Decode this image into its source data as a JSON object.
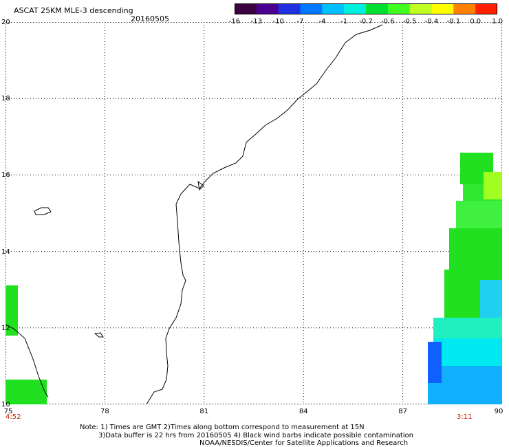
{
  "header": {
    "title": "ASCAT 25KM MLE-3 descending",
    "date": "20160505"
  },
  "colorbar": {
    "colors": [
      "#3a0040",
      "#4a0090",
      "#2030e0",
      "#0078ff",
      "#00c0ff",
      "#00f0e0",
      "#00e030",
      "#40ff20",
      "#c0ff20",
      "#ffff00",
      "#ff8000",
      "#ff2000"
    ],
    "tick_labels": [
      "-16",
      "-13",
      "-10",
      "-7",
      "-4",
      "-1",
      "-0.7",
      "-0.6",
      "-0.5",
      "-0.4",
      "-0.1",
      "0.0",
      "1.0"
    ]
  },
  "map": {
    "lat_labels": [
      "20",
      "18",
      "16",
      "14",
      "12",
      "10"
    ],
    "lon_labels": [
      "75",
      "78",
      "81",
      "84",
      "87",
      "90"
    ],
    "lat_range": [
      10,
      20
    ],
    "lon_range": [
      75,
      90
    ],
    "grid": "dotted",
    "swath_times": [
      "4:52",
      "3:11"
    ]
  },
  "notes": {
    "line1": "Note: 1) Times are GMT 2)Times along bottom correspond to measurement at 15N",
    "line2": "3)Data buffer is 22 hrs from 20160505 4) Black wind barbs indicate possible contamination",
    "line3": "NOAA/NESDIS/Center for Satellite Applications and Research"
  }
}
